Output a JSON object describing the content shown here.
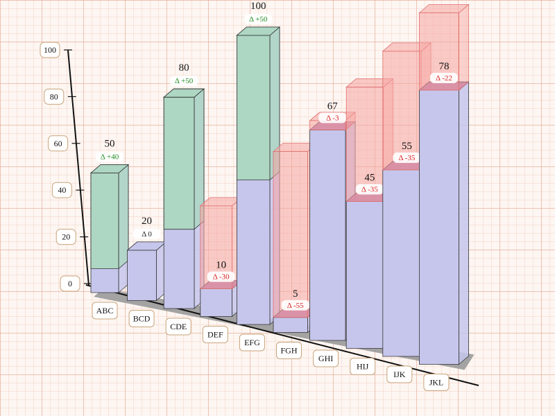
{
  "chart_data": {
    "type": "bar",
    "categories": [
      "ABC",
      "BCD",
      "CDE",
      "DEF",
      "EFG",
      "FGH",
      "GHI",
      "HIJ",
      "IJK",
      "JKL"
    ],
    "values": [
      50,
      20,
      80,
      10,
      100,
      5,
      67,
      45,
      55,
      78
    ],
    "previous_values": [
      10,
      20,
      30,
      40,
      50,
      60,
      70,
      80,
      90,
      100
    ],
    "delta_labels": [
      "Δ +40",
      "Δ 0",
      "Δ +50",
      "Δ -30",
      "Δ +50",
      "Δ -55",
      "Δ -3",
      "Δ -35",
      "Δ -35",
      "Δ -22"
    ],
    "y_ticks": [
      0,
      20,
      40,
      60,
      80,
      100
    ],
    "ylim": [
      0,
      100
    ],
    "grid": true,
    "colors": {
      "base": "#c6c6ec",
      "increase": "#a8d8bc",
      "decrease": "#f6a4a0",
      "increase_text": "#1f8a1f",
      "decrease_text": "#d81e1e",
      "neutral_text": "#222222",
      "floor": "#9a9a9a"
    }
  }
}
